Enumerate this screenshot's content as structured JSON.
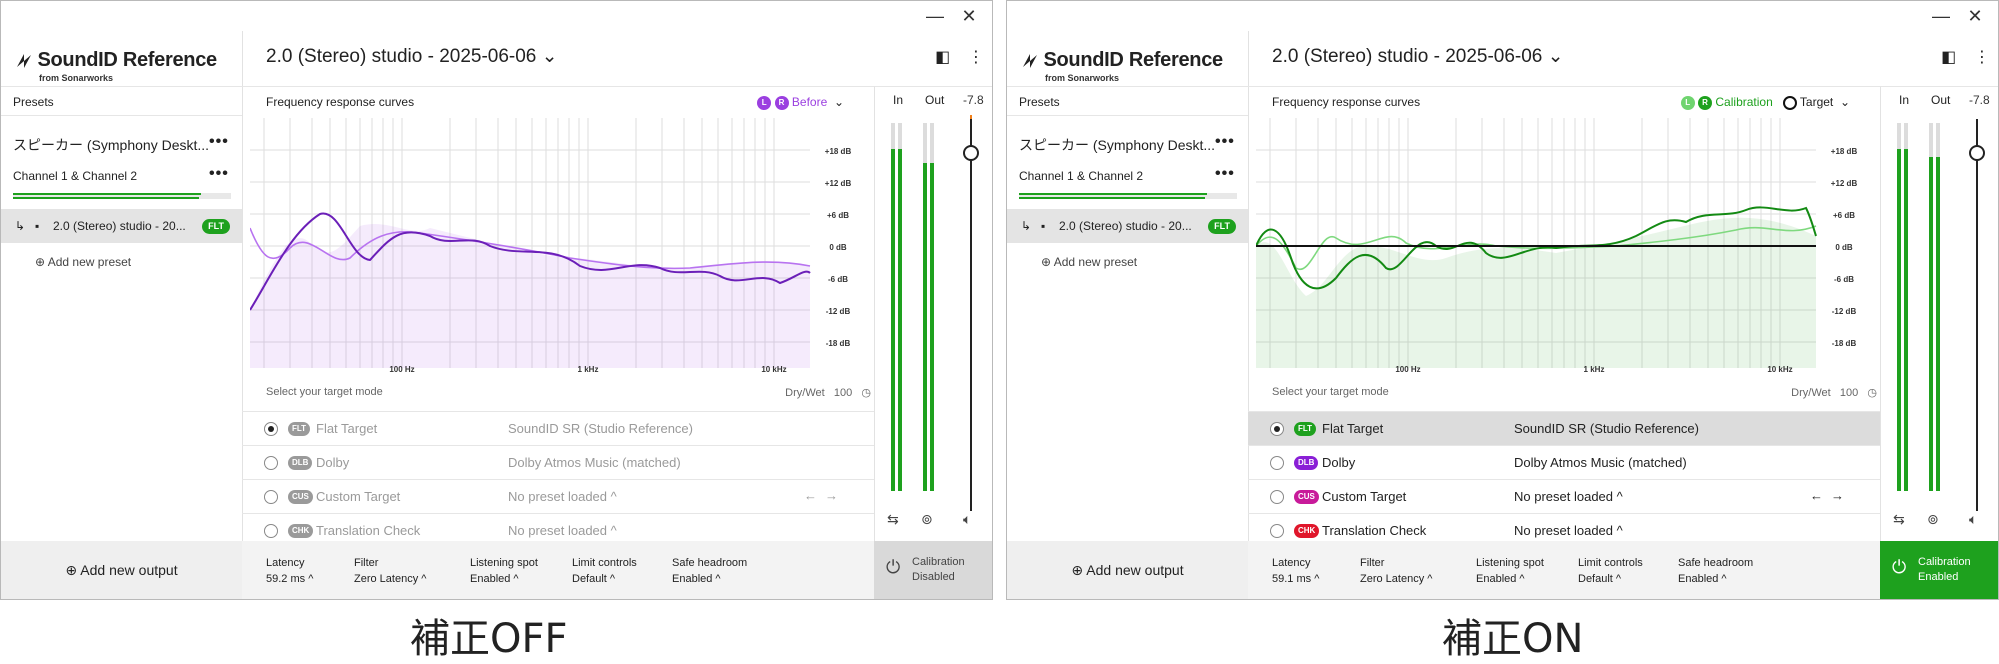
{
  "window_controls": {
    "minimize": "—",
    "close": "✕"
  },
  "sidebar": {
    "logo": "SoundID Reference",
    "logo_sub": "from Sonarworks",
    "presets_header": "Presets",
    "speaker": "スピーカー (Symphony Deskt...",
    "channel": "Channel 1 & Channel 2",
    "preset_item": "2.0 (Stereo) studio - 20...",
    "preset_badge": "FLT",
    "add_preset": "Add new preset",
    "add_output": "Add new output",
    "more": "•••"
  },
  "main": {
    "preset_title": "2.0 (Stereo) studio - 2025-06-06",
    "chart_title": "Frequency response curves",
    "db_ticks": [
      "+18 dB",
      "+12 dB",
      "+6 dB",
      "0 dB",
      "-6 dB",
      "-12 dB",
      "-18 dB"
    ],
    "freq_ticks": [
      "100 Hz",
      "1 kHz",
      "10 kHz"
    ],
    "mode_header": "Select your target mode",
    "drywet_label": "Dry/Wet",
    "drywet_value": "100",
    "modes": [
      {
        "tag": "FLT",
        "name": "Flat Target",
        "value": "SoundID SR (Studio Reference)"
      },
      {
        "tag": "DLB",
        "name": "Dolby",
        "value": "Dolby Atmos Music (matched)"
      },
      {
        "tag": "CUS",
        "name": "Custom Target",
        "value": "No preset loaded ^"
      },
      {
        "tag": "CHK",
        "name": "Translation Check",
        "value": "No preset loaded ^"
      }
    ],
    "meter_in": "In",
    "meter_out": "Out",
    "meter_level": "-7.8",
    "footer": {
      "latency_label": "Latency",
      "filter_label": "Filter",
      "filter_value": "Zero Latency",
      "listening_label": "Listening spot",
      "listening_value": "Enabled",
      "limit_label": "Limit controls",
      "limit_value": "Default",
      "headroom_label": "Safe headroom",
      "headroom_value": "Enabled"
    }
  },
  "left": {
    "legend": "Before",
    "latency_value": "59.2 ms",
    "calibration": "Calibration",
    "calibration_state": "Disabled",
    "caption": "補正OFF"
  },
  "right": {
    "legend": "Calibration",
    "legend_target": "Target",
    "latency_value": "59.1 ms",
    "calibration": "Calibration",
    "calibration_state": "Enabled",
    "caption": "補正ON"
  },
  "colors": {
    "before": "#9b3fe0",
    "calibration": "#1ea11e",
    "flt": "#1ea11e",
    "dlb": "#8a1fd6",
    "cus": "#c81a9a",
    "chk": "#e0162b"
  }
}
